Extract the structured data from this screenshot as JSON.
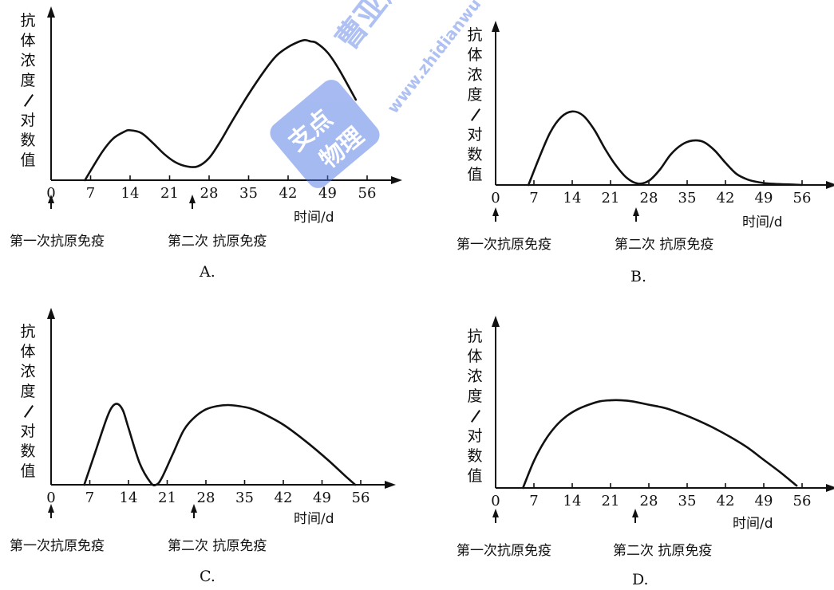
{
  "watermark": {
    "text_main": "曹亚辉高",
    "text_url": "www.zhidianwu",
    "text_badge_1": "支点",
    "text_badge_2": "物理"
  },
  "chart_data": [
    {
      "type": "line",
      "label": "A.",
      "ylabel": "抗体浓度/对数值",
      "xlabel": "时间/d",
      "xticks": [
        0,
        7,
        14,
        21,
        28,
        35,
        42,
        49,
        56
      ],
      "xlim": [
        0,
        56
      ],
      "ylim": [
        0,
        100
      ],
      "first_antigen": "第一次抗原免疫",
      "first_day": 0,
      "second_antigen": "第二次 抗原免疫",
      "second_day": 25,
      "x": [
        6,
        9,
        11,
        13,
        14,
        16,
        18,
        20,
        22,
        24,
        26,
        28,
        30,
        32,
        35,
        38,
        40,
        42,
        44,
        45,
        46,
        47,
        49,
        51,
        54
      ],
      "y": [
        0,
        20,
        30,
        35,
        36,
        34,
        27,
        19,
        13,
        10,
        10,
        16,
        28,
        42,
        62,
        80,
        90,
        96,
        100,
        101,
        100,
        99,
        92,
        80,
        58
      ]
    },
    {
      "type": "line",
      "label": "B.",
      "ylabel": "抗体浓度/对数值",
      "xlabel": "时间/d",
      "xticks": [
        0,
        7,
        14,
        21,
        28,
        35,
        42,
        49,
        56
      ],
      "xlim": [
        0,
        56
      ],
      "ylim": [
        0,
        100
      ],
      "first_antigen": "第一次抗原免疫",
      "first_day": 0,
      "second_antigen": "第二次 抗原免疫",
      "second_day": 25,
      "x": [
        6,
        8,
        10,
        12,
        14,
        16,
        18,
        20,
        22,
        24,
        26,
        28,
        30,
        32,
        34,
        36,
        38,
        40,
        42,
        44,
        46,
        48,
        50,
        53,
        56
      ],
      "y": [
        0,
        20,
        38,
        49,
        53,
        50,
        40,
        26,
        14,
        5,
        1,
        3,
        11,
        22,
        29,
        32,
        31,
        25,
        16,
        8,
        4,
        2,
        1,
        0.5,
        0
      ]
    },
    {
      "type": "line",
      "label": "C.",
      "ylabel": "抗体浓度/对数值",
      "xlabel": "时间/d",
      "xticks": [
        0,
        7,
        14,
        21,
        28,
        35,
        42,
        49,
        56
      ],
      "xlim": [
        0,
        56
      ],
      "ylim": [
        0,
        100
      ],
      "first_antigen": "第一次抗原免疫",
      "first_day": 0,
      "second_antigen": "第二次 抗原免疫",
      "second_day": 25,
      "x": [
        6,
        8,
        10,
        11,
        12,
        13,
        14,
        16,
        18,
        19,
        20,
        22,
        24,
        26,
        28,
        30,
        32,
        34,
        36,
        38,
        42,
        46,
        50,
        53,
        55
      ],
      "y": [
        0,
        30,
        60,
        71,
        74,
        68,
        52,
        20,
        2,
        0,
        6,
        28,
        50,
        62,
        69,
        72,
        73,
        72,
        70,
        66,
        55,
        40,
        23,
        9,
        0
      ]
    },
    {
      "type": "line",
      "label": "D.",
      "ylabel": "抗体浓度/对数值",
      "xlabel": "时间/d",
      "xticks": [
        0,
        7,
        14,
        21,
        28,
        35,
        42,
        49,
        56
      ],
      "xlim": [
        0,
        56
      ],
      "ylim": [
        0,
        100
      ],
      "first_antigen": "第一次抗原免疫",
      "first_day": 0,
      "second_antigen": "第二次 抗原免疫",
      "second_day": 25,
      "x": [
        5,
        7,
        9,
        11,
        13,
        15,
        17,
        19,
        21,
        23,
        25,
        28,
        31,
        34,
        37,
        40,
        43,
        46,
        49,
        52,
        55
      ],
      "y": [
        0,
        24,
        42,
        55,
        64,
        70,
        74,
        77,
        78,
        78,
        77,
        74,
        71,
        66,
        60,
        53,
        45,
        36,
        25,
        14,
        2
      ]
    }
  ]
}
